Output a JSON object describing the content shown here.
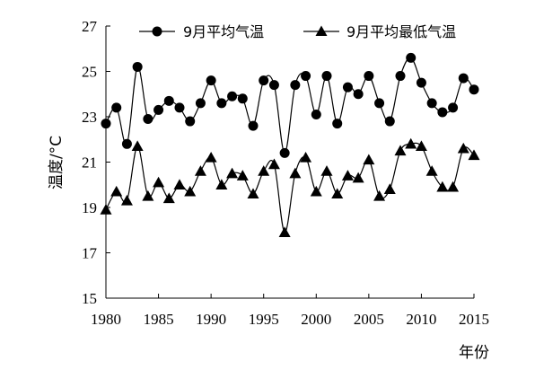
{
  "chart_data": {
    "type": "line",
    "title": "",
    "xlabel": "年份",
    "ylabel": "温度/°C",
    "xlim": [
      1980,
      2015
    ],
    "ylim": [
      15,
      27
    ],
    "x_ticks": [
      "1980",
      "1985",
      "1990",
      "1995",
      "2000",
      "2005",
      "2010",
      "2015"
    ],
    "y_ticks": [
      "15",
      "17",
      "19",
      "21",
      "23",
      "25",
      "27"
    ],
    "legend_position": "top",
    "grid": false,
    "x": [
      1980,
      1981,
      1982,
      1983,
      1984,
      1985,
      1986,
      1987,
      1988,
      1989,
      1990,
      1991,
      1992,
      1993,
      1994,
      1995,
      1996,
      1997,
      1998,
      1999,
      2000,
      2001,
      2002,
      2003,
      2004,
      2005,
      2006,
      2007,
      2008,
      2009,
      2010,
      2011,
      2012,
      2013,
      2014,
      2015
    ],
    "series": [
      {
        "name": "9月平均气温",
        "marker": "circle",
        "values": [
          22.7,
          23.4,
          21.8,
          25.2,
          22.9,
          23.3,
          23.7,
          23.4,
          22.8,
          23.6,
          24.6,
          23.6,
          23.9,
          23.8,
          22.6,
          24.6,
          24.4,
          21.4,
          24.4,
          24.8,
          23.1,
          24.8,
          22.7,
          24.3,
          24.0,
          24.8,
          23.6,
          22.8,
          24.8,
          25.6,
          24.5,
          23.6,
          23.2,
          23.4,
          24.7,
          24.2
        ]
      },
      {
        "name": "9月平均最低气温",
        "marker": "triangle",
        "values": [
          18.9,
          19.7,
          19.3,
          21.7,
          19.5,
          20.1,
          19.4,
          20.0,
          19.7,
          20.6,
          21.2,
          20.0,
          20.5,
          20.4,
          19.6,
          20.6,
          20.9,
          17.9,
          20.5,
          21.2,
          19.7,
          20.6,
          19.6,
          20.4,
          20.3,
          21.1,
          19.5,
          19.8,
          21.5,
          21.8,
          21.7,
          20.6,
          19.9,
          19.9,
          21.6,
          21.3
        ]
      }
    ]
  }
}
